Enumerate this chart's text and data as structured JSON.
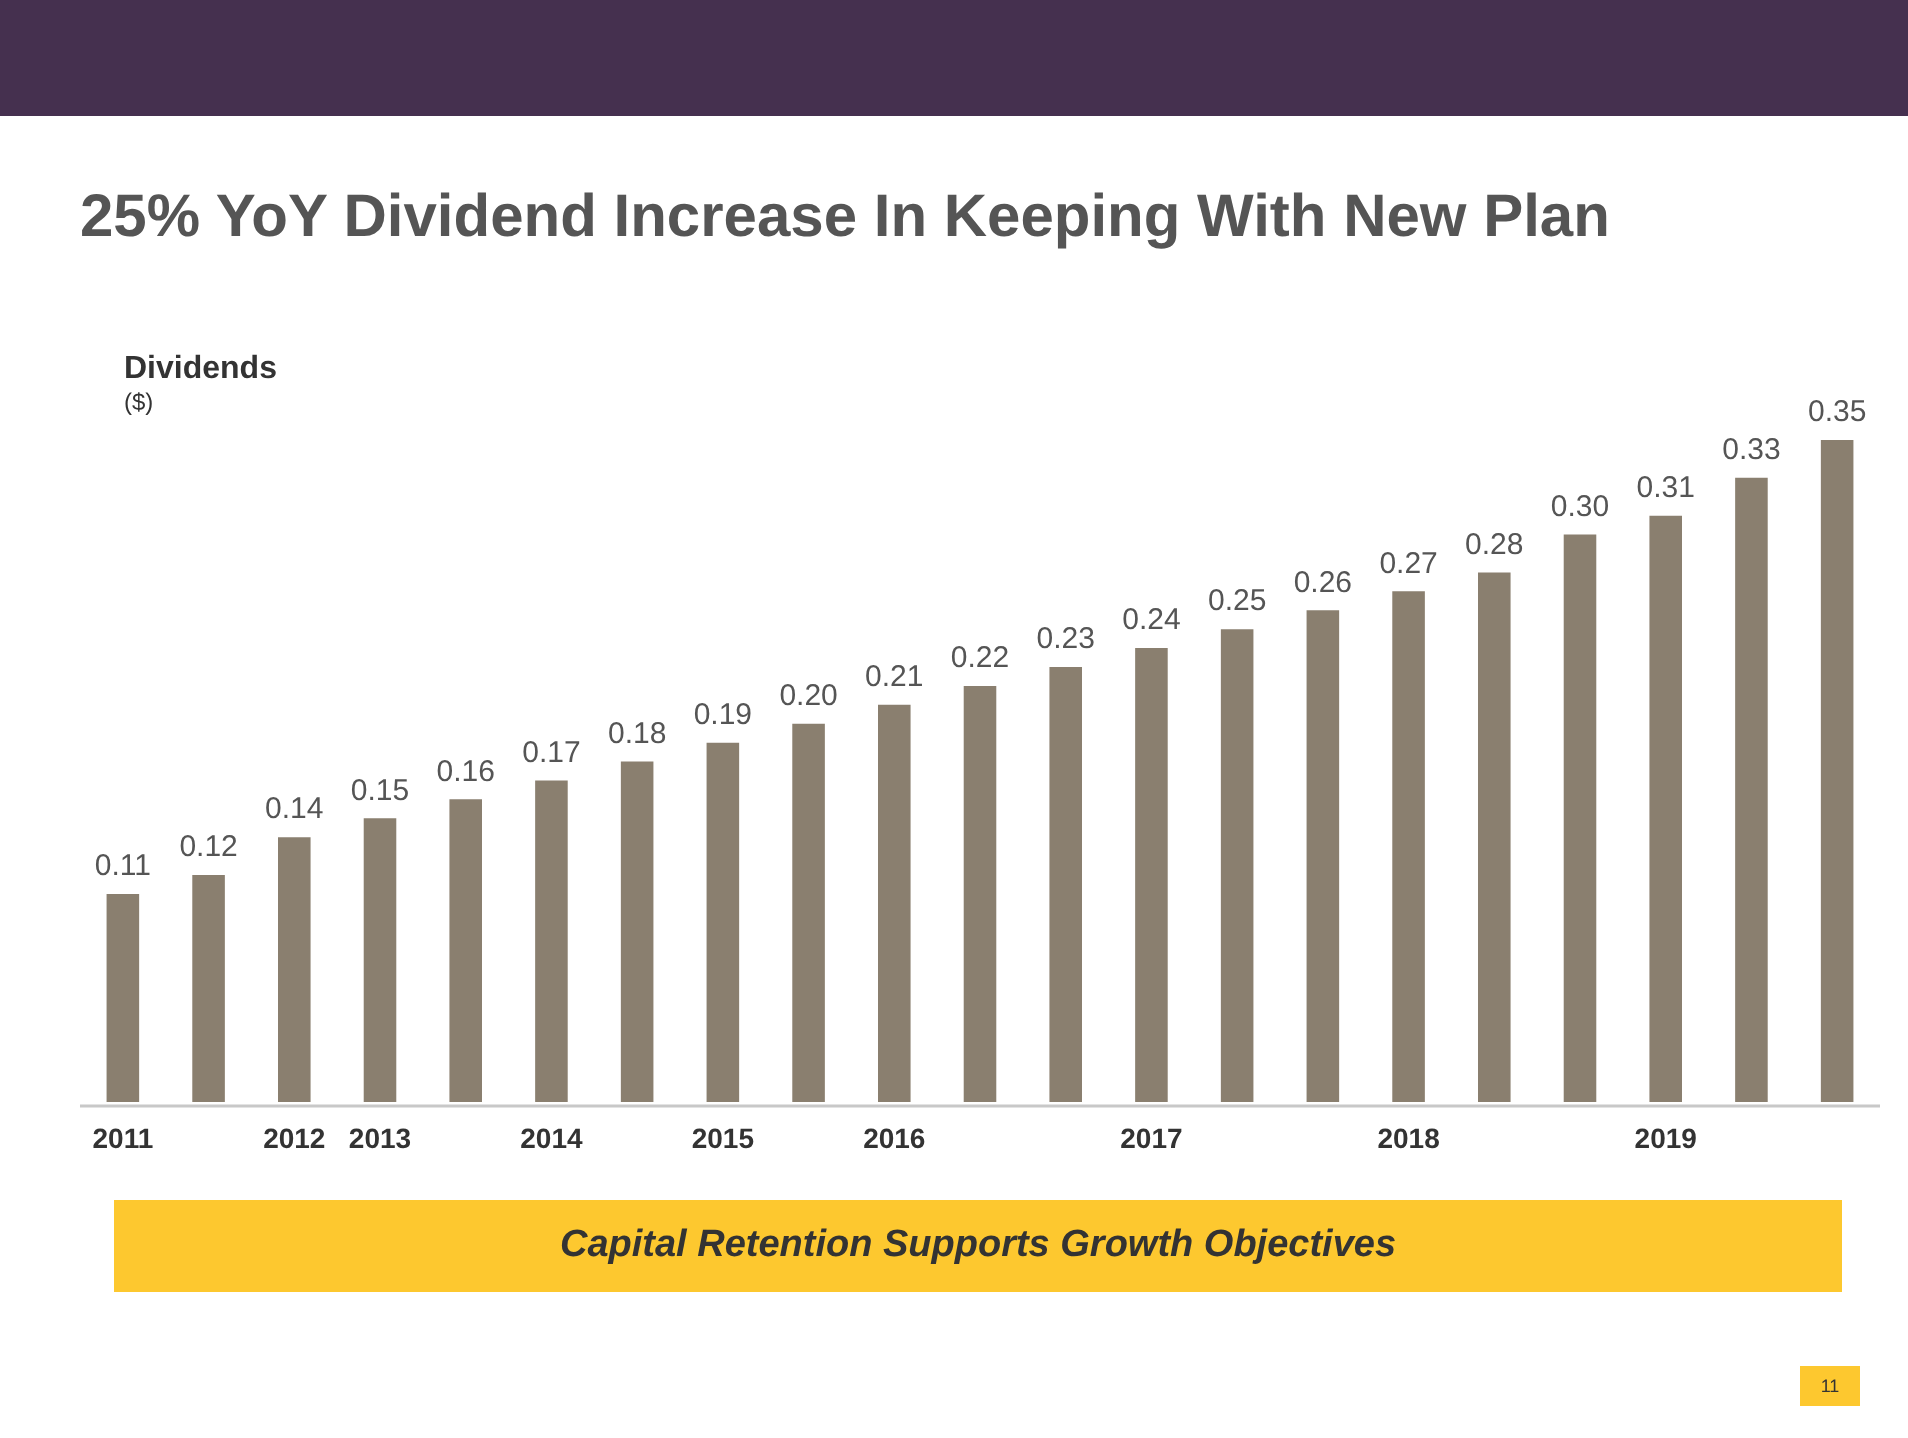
{
  "chart_data": {
    "type": "bar",
    "title": "25% YoY Dividend Increase In Keeping With New Plan",
    "ylabel": "Dividends ($)",
    "categories": [
      "2011",
      null,
      "2012",
      "2013",
      null,
      "2014",
      null,
      "2015",
      null,
      "2016",
      null,
      null,
      "2017",
      null,
      null,
      "2018",
      null,
      null,
      "2019",
      null,
      null
    ],
    "values": [
      0.11,
      0.12,
      0.14,
      0.15,
      0.16,
      0.17,
      0.18,
      0.19,
      0.2,
      0.21,
      0.22,
      0.23,
      0.24,
      0.25,
      0.26,
      0.27,
      0.28,
      0.3,
      0.31,
      0.33,
      0.35
    ],
    "value_labels": [
      "0.11",
      "0.12",
      "0.14",
      "0.15",
      "0.16",
      "0.17",
      "0.18",
      "0.19",
      "0.20",
      "0.21",
      "0.22",
      "0.23",
      "0.24",
      "0.25",
      "0.26",
      "0.27",
      "0.28",
      "0.30",
      "0.31",
      "0.33",
      "0.35"
    ],
    "color": "#8a7f6f",
    "annotations": [
      "Capital Retention Supports Growth Objectives",
      "11"
    ]
  }
}
